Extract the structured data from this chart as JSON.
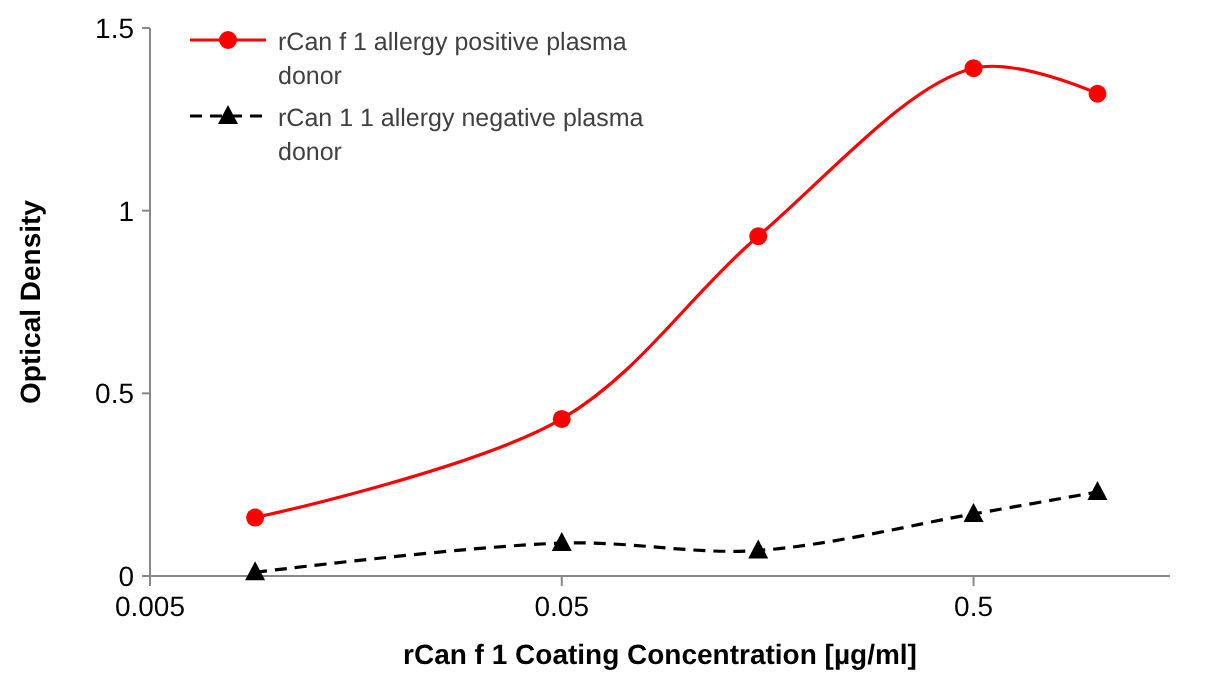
{
  "chart_data": {
    "type": "line",
    "xlabel": "rCan f 1 Coating Concentration [µg/ml]",
    "ylabel": "Optical Density",
    "log": "x",
    "x": [
      0.009,
      0.05,
      0.15,
      0.5,
      1
    ],
    "series": [
      {
        "name": "rCan f 1 allergy positive plasma donor",
        "color": "#ff0000",
        "values": [
          0.16,
          0.43,
          0.93,
          1.39,
          1.32
        ],
        "marker": "circle",
        "line_style": "solid"
      },
      {
        "name": "rCan 1 1 allergy negative plasma donor",
        "color": "#000000",
        "values": [
          0.01,
          0.09,
          0.07,
          0.17,
          0.23
        ],
        "marker": "triangle",
        "line_style": "dashed"
      }
    ],
    "xlim": [
      0.005,
      1.5
    ],
    "xticks": [
      0.005,
      0.05,
      0.5
    ],
    "ylim": [
      0,
      1.5
    ],
    "yticks": [
      0,
      0.5,
      1,
      1.5
    ],
    "grid": false,
    "legend": "top left"
  }
}
